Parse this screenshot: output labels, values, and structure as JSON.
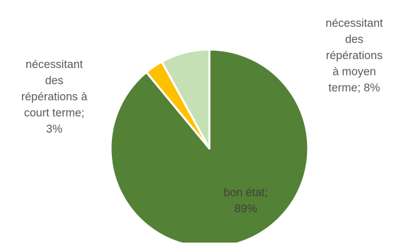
{
  "chart_data": {
    "type": "pie",
    "title": "",
    "slices": [
      {
        "category": "bon état",
        "percent_label": "89%",
        "value": 89,
        "color": "#538135",
        "label_lines": [
          "bon état;",
          "89%"
        ],
        "label_color": "#404040"
      },
      {
        "category": "nécessitant des répérations à court terme",
        "percent_label": "3%",
        "value": 3,
        "color": "#ffc000",
        "label_lines": [
          "nécessitant",
          "des",
          "répérations à",
          "court terme;",
          "3%"
        ],
        "label_color": "#595959"
      },
      {
        "category": "nécessitant des répérations à moyen terme",
        "percent_label": "8%",
        "value": 8,
        "color": "#c5e0b4",
        "label_lines": [
          "nécessitant",
          "des",
          "répérations",
          "à moyen",
          "terme; 8%"
        ],
        "label_color": "#595959"
      }
    ]
  }
}
